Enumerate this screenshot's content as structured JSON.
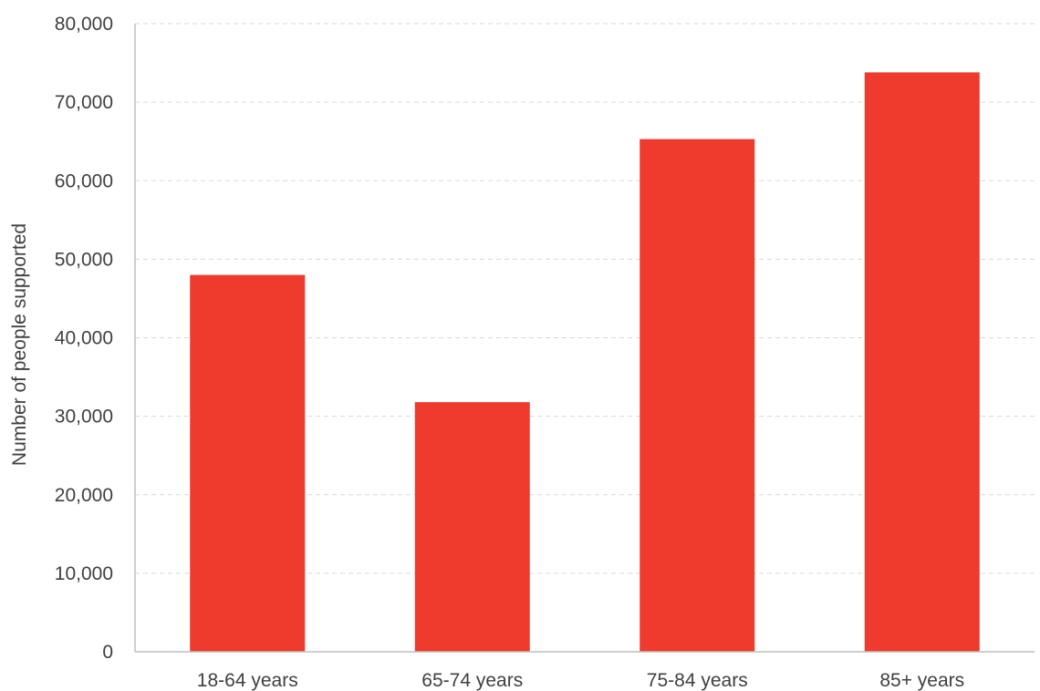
{
  "chart_data": {
    "type": "bar",
    "title": "",
    "xlabel": "",
    "ylabel": "Number of people supported",
    "categories": [
      "18-64 years",
      "65-74 years",
      "75-84 years",
      "85+ years"
    ],
    "values": [
      48000,
      31800,
      65300,
      73800
    ],
    "ylim": [
      0,
      80000
    ],
    "yticks": [
      0,
      10000,
      20000,
      30000,
      40000,
      50000,
      60000,
      70000,
      80000
    ],
    "ytick_labels": [
      "0",
      "10,000",
      "20,000",
      "30,000",
      "40,000",
      "50,000",
      "60,000",
      "70,000",
      "80,000"
    ],
    "grid": true,
    "grid_style": "dashed",
    "legend": "none",
    "colors": {
      "bar": "#EE3B2D",
      "grid": "#D9D9D9",
      "axis": "#BFBFBF",
      "text": "#404040"
    }
  }
}
